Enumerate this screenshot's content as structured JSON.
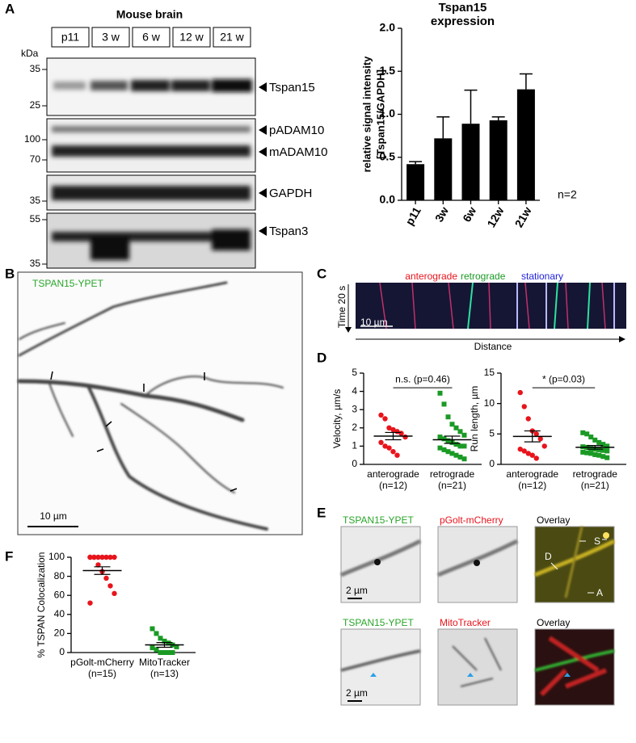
{
  "panels": [
    "A",
    "B",
    "C",
    "D",
    "E",
    "F"
  ],
  "blot": {
    "title": "Mouse brain",
    "lanes": [
      "p11",
      "3 w",
      "6 w",
      "12 w",
      "21 w"
    ],
    "unit": "kDa",
    "markers": [
      "35",
      "25",
      "100",
      "70",
      "35",
      "55",
      "35"
    ],
    "bands": [
      "Tspan15",
      "pADAM10",
      "mADAM10",
      "GAPDH",
      "Tspan3"
    ]
  },
  "micrograph": {
    "label": "TSPAN15-YPET",
    "scale": "10 µm"
  },
  "kymograph": {
    "legend": [
      "anterograde",
      "retrograde",
      "stationary"
    ],
    "time": "Time 20 s",
    "scale": "10 µm",
    "axis": "Distance"
  },
  "e_images": {
    "labels": [
      [
        "TSPAN15-YPET",
        "pGolt-mCherry",
        "Overlay"
      ],
      [
        "TSPAN15-YPET",
        "MitoTracker",
        "Overlay"
      ]
    ],
    "scale": [
      "2 µm",
      "2 µm"
    ],
    "annotations": [
      "D",
      "S",
      "A"
    ]
  },
  "chart_data": [
    {
      "type": "bar",
      "title": [
        "Tspan15",
        "expression"
      ],
      "ylabel": [
        "relative signal intensity",
        "[Tspan15/GAPDH]"
      ],
      "categories": [
        "p11",
        "3w",
        "6w",
        "12w",
        "21w"
      ],
      "values": [
        0.42,
        0.72,
        0.89,
        0.93,
        1.29
      ],
      "errors": [
        0.03,
        0.25,
        0.39,
        0.04,
        0.18
      ],
      "color": "#000000",
      "ylim": [
        0,
        2
      ],
      "yticks": [
        {
          "value": 0,
          "label": "0.0"
        },
        {
          "value": 0.5,
          "label": "0.5"
        },
        {
          "value": 1,
          "label": "1.0"
        },
        {
          "value": 1.5,
          "label": "1.5"
        },
        {
          "value": 2,
          "label": "2.0"
        }
      ],
      "annotation": "n=2"
    },
    {
      "type": "strip",
      "ylabel": "Velocity, µm/s",
      "categories": [
        "anterograde",
        "retrograde"
      ],
      "n_labels": [
        "(n=12)",
        "(n=21)"
      ],
      "groups": [
        {
          "color": "#e8141c",
          "marker": "circle",
          "values": [
            2.7,
            2.5,
            2.0,
            1.9,
            1.8,
            1.7,
            1.5,
            1.2,
            1.0,
            0.9,
            0.7,
            0.5
          ],
          "mean": 1.55,
          "sem": 0.2
        },
        {
          "color": "#1a9a24",
          "marker": "square",
          "values": [
            3.9,
            3.3,
            2.6,
            2.2,
            2.0,
            1.8,
            1.6,
            1.5,
            1.4,
            1.3,
            1.2,
            1.1,
            1.0,
            1.0,
            0.9,
            0.8,
            0.7,
            0.6,
            0.5,
            0.4,
            0.3
          ],
          "mean": 1.35,
          "sem": 0.2
        }
      ],
      "ylim": [
        0,
        5
      ],
      "yticks": [
        0,
        1,
        2,
        3,
        4,
        5
      ],
      "annotation": "n.s. (p=0.46)"
    },
    {
      "type": "strip",
      "ylabel": "Run length, µm",
      "categories": [
        "anterograde",
        "retrograde"
      ],
      "n_labels": [
        "(n=12)",
        "(n=21)"
      ],
      "groups": [
        {
          "color": "#e8141c",
          "marker": "circle",
          "values": [
            11.8,
            9.5,
            7.5,
            5.5,
            5.0,
            4.2,
            3.0,
            2.5,
            2.2,
            1.8,
            1.5,
            1.0
          ],
          "mean": 4.6,
          "sem": 0.9
        },
        {
          "color": "#1a9a24",
          "marker": "square",
          "values": [
            5.2,
            5.0,
            4.5,
            4.0,
            3.6,
            3.3,
            3.0,
            2.9,
            2.8,
            2.6,
            2.5,
            2.4,
            2.3,
            2.2,
            2.0,
            1.9,
            1.8,
            1.6,
            1.5,
            1.3,
            1.1
          ],
          "mean": 2.8,
          "sem": 0.3
        }
      ],
      "ylim": [
        0,
        15
      ],
      "yticks": [
        0,
        5,
        10,
        15
      ],
      "annotation": "* (p=0.03)"
    },
    {
      "type": "strip",
      "ylabel": "% TSPAN Colocalization",
      "categories": [
        "pGolt-mCherry",
        "MitoTracker"
      ],
      "n_labels": [
        "(n=15)",
        "(n=13)"
      ],
      "groups": [
        {
          "color": "#e8141c",
          "marker": "circle",
          "values": [
            100,
            100,
            100,
            100,
            100,
            100,
            100,
            100,
            100,
            92,
            85,
            78,
            70,
            62,
            52
          ],
          "mean": 86,
          "sem": 4
        },
        {
          "color": "#1a9a24",
          "marker": "square",
          "values": [
            25,
            20,
            15,
            12,
            10,
            8,
            6,
            5,
            3,
            0,
            0,
            0,
            0
          ],
          "mean": 8,
          "sem": 2.5
        }
      ],
      "ylim": [
        0,
        100
      ],
      "yticks": [
        0,
        20,
        40,
        60,
        80,
        100
      ]
    }
  ]
}
